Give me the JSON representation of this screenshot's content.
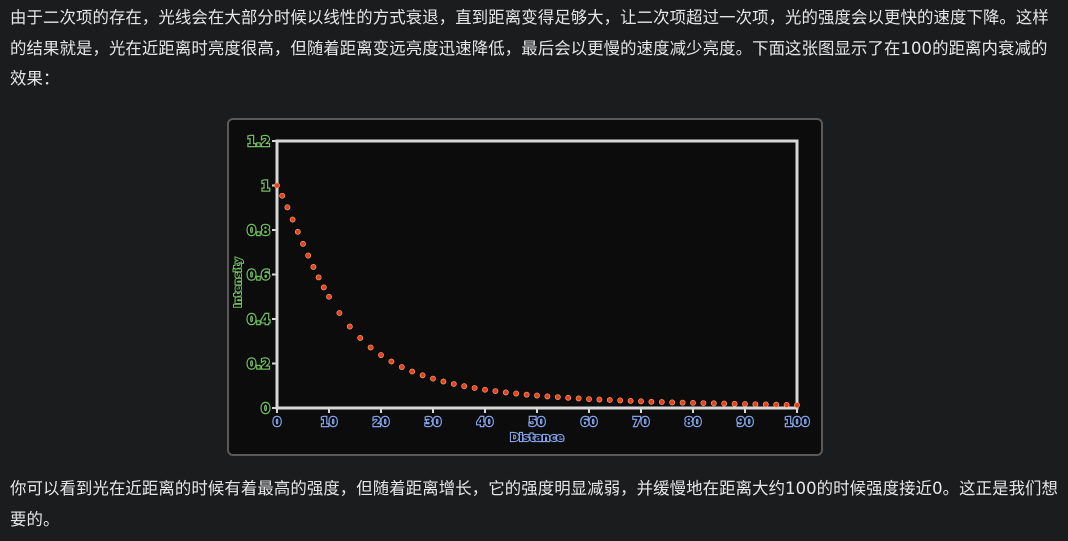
{
  "text": {
    "paragraph_top": "由于二次项的存在，光线会在大部分时候以线性的方式衰退，直到距离变得足够大，让二次项超过一次项，光的强度会以更快的速度下降。这样的结果就是，光在近距离时亮度很高，但随着距离变远亮度迅速降低，最后会以更慢的速度减少亮度。下面这张图显示了在100的距离内衰减的效果：",
    "paragraph_bottom": "你可以看到光在近距离的时候有着最高的强度，但随着距离增长，它的强度明显减弱，并缓慢地在距离大约100的时候强度接近0。这正是我们想要的。"
  },
  "colors": {
    "background": "#1b1c1e",
    "text": "#e6e6e6",
    "curve": "#e8401e",
    "axis": "#d8d8d8",
    "y_label": "#6fbf5e",
    "x_label": "#7fa3e6"
  },
  "chart_data": {
    "type": "scatter",
    "xlabel": "Distance",
    "ylabel": "Intensity",
    "xlim": [
      0,
      100
    ],
    "ylim": [
      0,
      1.2
    ],
    "x_ticks": [
      "0",
      "10",
      "20",
      "30",
      "40",
      "50",
      "60",
      "70",
      "80",
      "90",
      "100"
    ],
    "y_ticks": [
      "0",
      "0.2",
      "0.4",
      "0.6",
      "0.8",
      "1",
      "1.2"
    ],
    "grid": false,
    "series": [
      {
        "x": [
          0,
          1,
          2,
          3,
          4,
          5,
          6,
          7,
          8,
          9,
          10,
          12,
          14,
          16,
          18,
          20,
          22,
          24,
          26,
          28,
          30,
          32,
          34,
          36,
          38,
          40,
          42,
          44,
          46,
          48,
          50,
          52,
          54,
          56,
          58,
          60,
          62,
          64,
          66,
          68,
          70,
          72,
          74,
          76,
          78,
          80,
          82,
          84,
          86,
          88,
          90,
          92,
          94,
          96,
          98,
          100
        ],
        "y": [
          1.0,
          0.954,
          0.902,
          0.847,
          0.792,
          0.738,
          0.685,
          0.634,
          0.587,
          0.542,
          0.5,
          0.427,
          0.366,
          0.315,
          0.272,
          0.238,
          0.209,
          0.184,
          0.164,
          0.147,
          0.132,
          0.119,
          0.108,
          0.098,
          0.09,
          0.082,
          0.076,
          0.07,
          0.065,
          0.06,
          0.056,
          0.052,
          0.049,
          0.046,
          0.043,
          0.04,
          0.038,
          0.036,
          0.034,
          0.032,
          0.03,
          0.028,
          0.027,
          0.025,
          0.024,
          0.023,
          0.022,
          0.021,
          0.02,
          0.019,
          0.018,
          0.017,
          0.016,
          0.015,
          0.014,
          0.013
        ]
      }
    ]
  }
}
